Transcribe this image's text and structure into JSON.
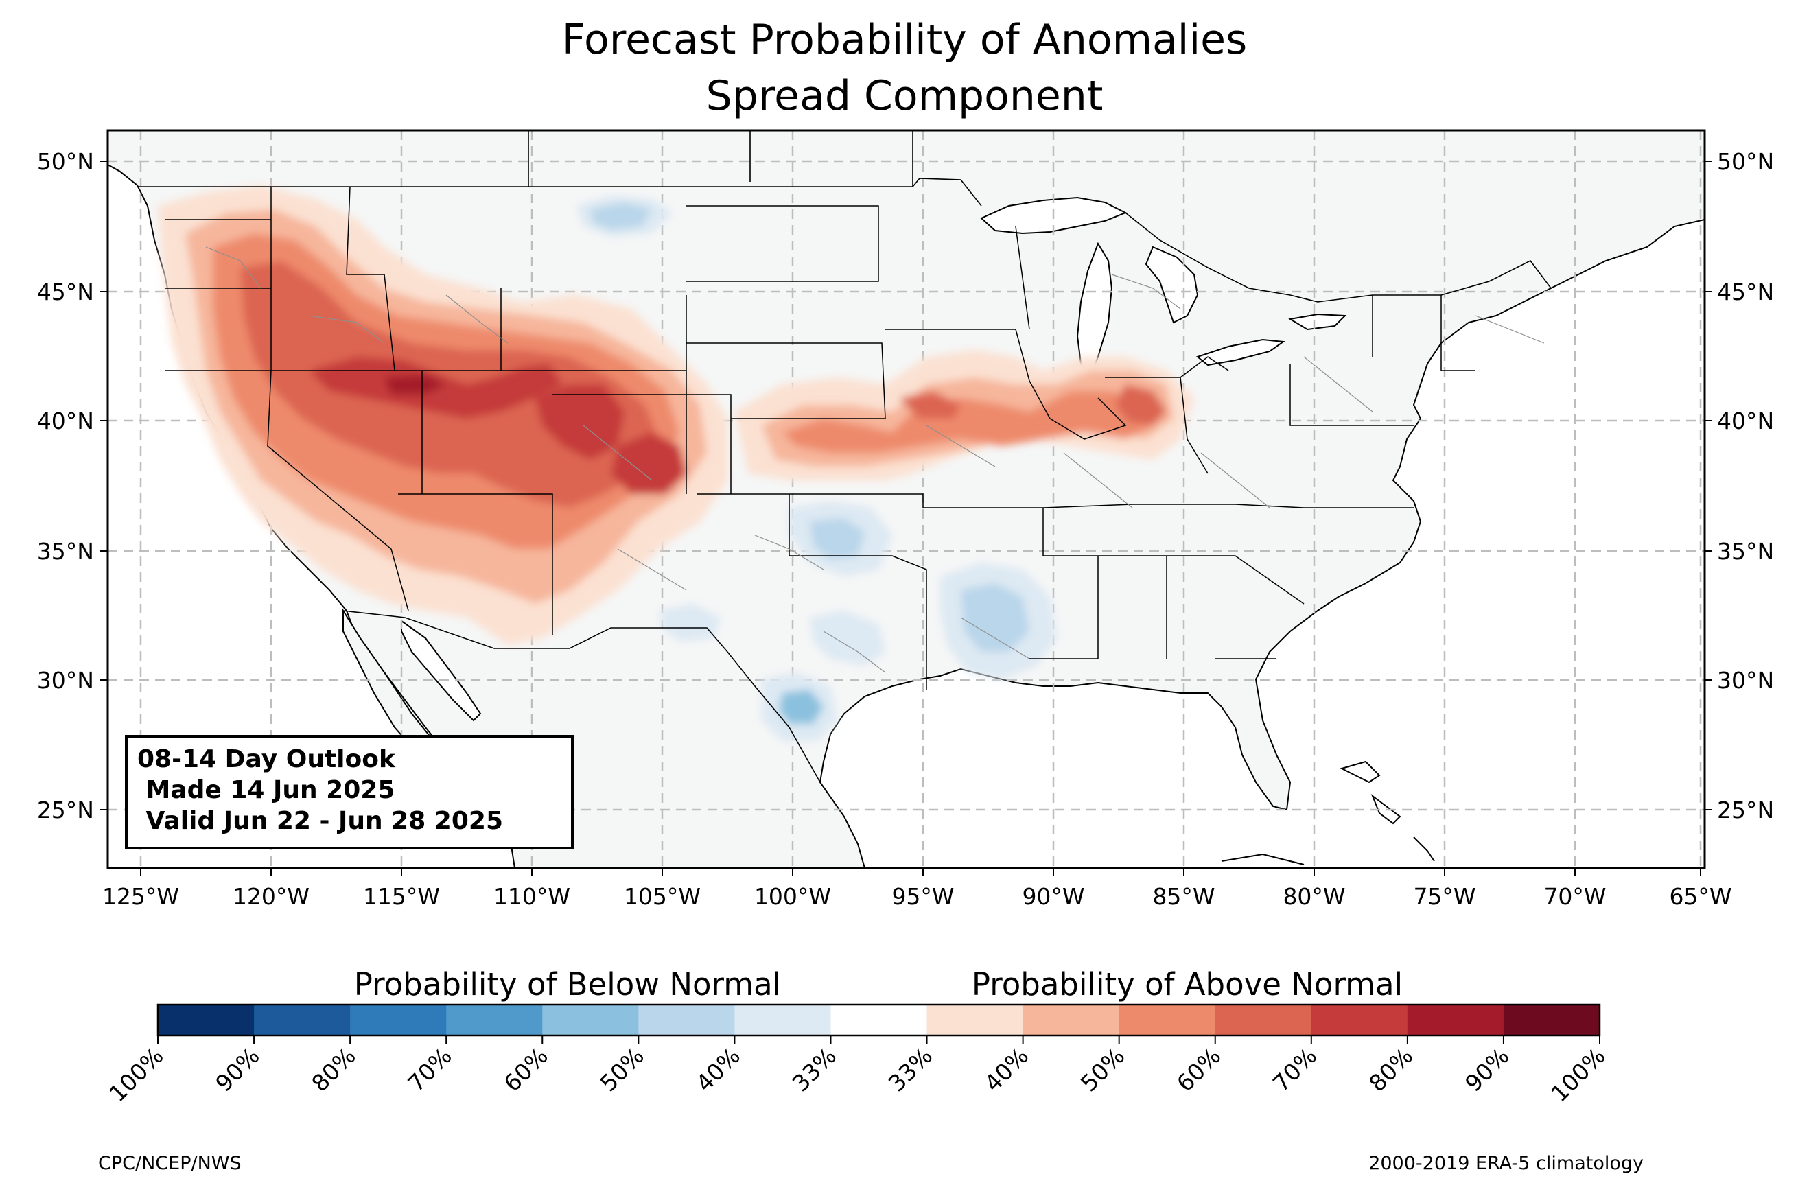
{
  "title_line1": "Forecast Probability of Anomalies",
  "title_line2": "Spread Component",
  "outlook": {
    "line1": "08-14 Day Outlook",
    "line2": " Made 14 Jun 2025",
    "line3": " Valid Jun 22 - Jun 28 2025"
  },
  "lon_ticks": [
    "125°W",
    "120°W",
    "115°W",
    "110°W",
    "105°W",
    "100°W",
    "95°W",
    "90°W",
    "85°W",
    "80°W",
    "75°W",
    "70°W",
    "65°W"
  ],
  "lat_ticks": [
    "50°N",
    "45°N",
    "40°N",
    "35°N",
    "30°N",
    "25°N"
  ],
  "colorbar": {
    "below_label": "Probability of Below Normal",
    "above_label": "Probability of Above Normal",
    "ticks": [
      "100%",
      "90%",
      "80%",
      "70%",
      "60%",
      "50%",
      "40%",
      "33%",
      "33%",
      "40%",
      "50%",
      "60%",
      "70%",
      "80%",
      "90%",
      "100%"
    ],
    "colors": [
      "#08306b",
      "#1c5a9c",
      "#2f7ab8",
      "#4f9acb",
      "#8bc1de",
      "#b9d6ea",
      "#dde9f3",
      "#ffffff",
      "#fbe1d2",
      "#f6b69b",
      "#ee8a6c",
      "#dc6551",
      "#c53a3a",
      "#a41c2b",
      "#6e0a1f"
    ]
  },
  "credit_left": "CPC/NCEP/NWS",
  "credit_right": "2000-2019 ERA-5 climatology"
}
